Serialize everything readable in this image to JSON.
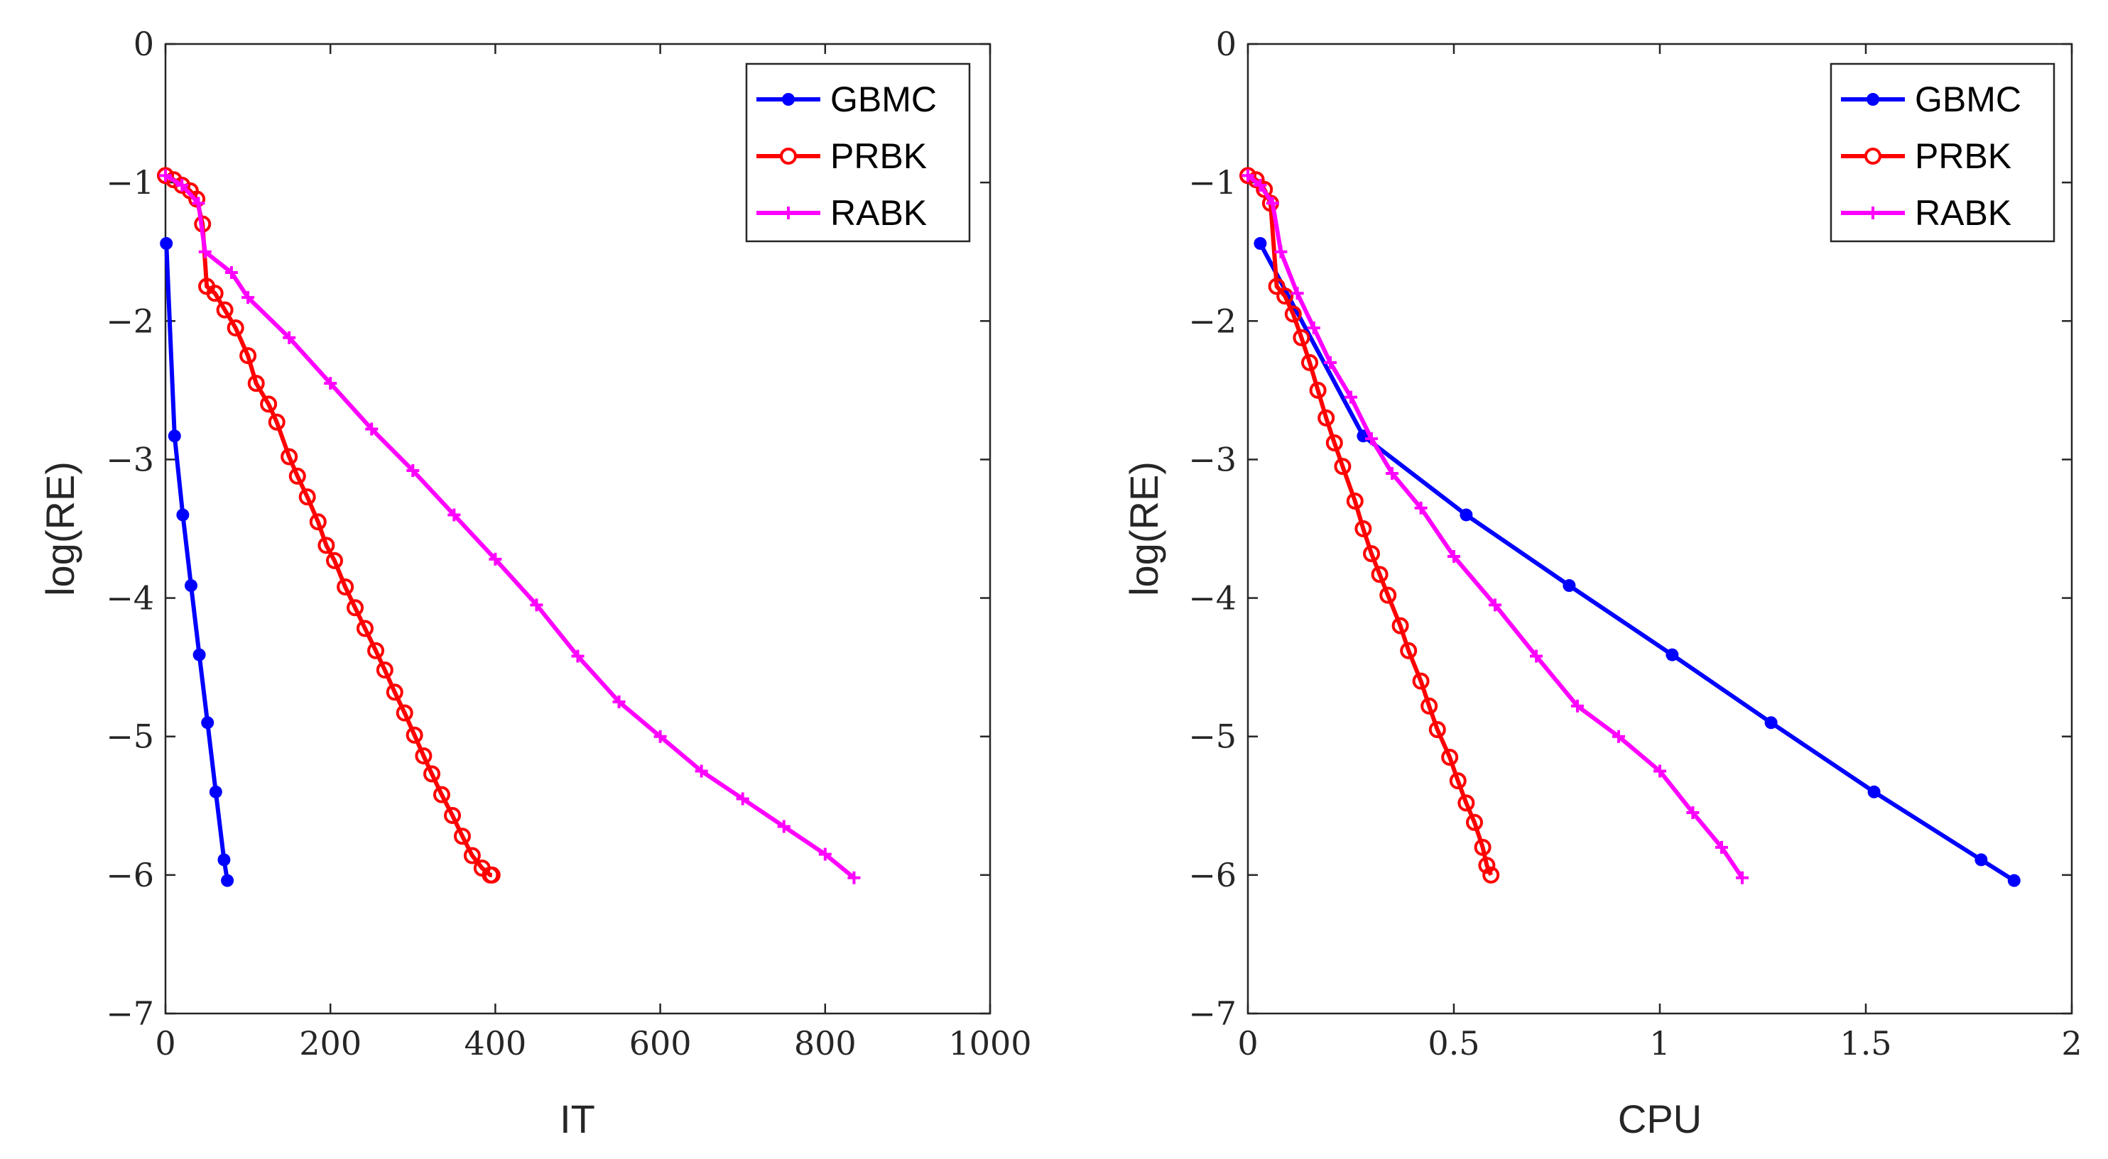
{
  "chart_data": [
    {
      "type": "line",
      "xlabel": "IT",
      "ylabel": "log(RE)",
      "xlim": [
        0,
        1000
      ],
      "ylim": [
        -7,
        0
      ],
      "xticks": [
        0,
        200,
        400,
        600,
        800,
        1000
      ],
      "xtick_labels": [
        "0",
        "200",
        "400",
        "600",
        "800",
        "1000"
      ],
      "yticks": [
        0,
        -1,
        -2,
        -3,
        -4,
        -5,
        -6,
        -7
      ],
      "ytick_labels": [
        "0",
        "−1",
        "−2",
        "−3",
        "−4",
        "−5",
        "−6",
        "−7"
      ],
      "legend_position": "top-right",
      "series": [
        {
          "name": "GBMC",
          "color": "#0000ff",
          "marker": "filled-dot",
          "points": [
            [
              1,
              -1.44
            ],
            [
              11,
              -2.83
            ],
            [
              21,
              -3.4
            ],
            [
              31,
              -3.91
            ],
            [
              41,
              -4.41
            ],
            [
              51,
              -4.9
            ],
            [
              61,
              -5.4
            ],
            [
              71,
              -5.89
            ],
            [
              75,
              -6.04
            ]
          ]
        },
        {
          "name": "PRBK",
          "color": "#ff0000",
          "marker": "open-circle",
          "points": [
            [
              0,
              -0.95
            ],
            [
              10,
              -0.98
            ],
            [
              20,
              -1.02
            ],
            [
              30,
              -1.06
            ],
            [
              38,
              -1.12
            ],
            [
              45,
              -1.3
            ],
            [
              50,
              -1.75
            ],
            [
              60,
              -1.8
            ],
            [
              72,
              -1.92
            ],
            [
              85,
              -2.05
            ],
            [
              100,
              -2.25
            ],
            [
              110,
              -2.45
            ],
            [
              125,
              -2.6
            ],
            [
              135,
              -2.73
            ],
            [
              150,
              -2.98
            ],
            [
              160,
              -3.12
            ],
            [
              172,
              -3.27
            ],
            [
              185,
              -3.45
            ],
            [
              195,
              -3.62
            ],
            [
              205,
              -3.73
            ],
            [
              218,
              -3.92
            ],
            [
              230,
              -4.07
            ],
            [
              242,
              -4.22
            ],
            [
              255,
              -4.38
            ],
            [
              266,
              -4.52
            ],
            [
              278,
              -4.68
            ],
            [
              290,
              -4.83
            ],
            [
              302,
              -4.99
            ],
            [
              313,
              -5.14
            ],
            [
              323,
              -5.27
            ],
            [
              335,
              -5.42
            ],
            [
              348,
              -5.57
            ],
            [
              360,
              -5.72
            ],
            [
              372,
              -5.86
            ],
            [
              384,
              -5.95
            ],
            [
              394,
              -6.0
            ],
            [
              396,
              -6.0
            ]
          ]
        },
        {
          "name": "RABK",
          "color": "#ff00ff",
          "marker": "plus",
          "points": [
            [
              0,
              -0.95
            ],
            [
              20,
              -1.02
            ],
            [
              40,
              -1.15
            ],
            [
              48,
              -1.5
            ],
            [
              80,
              -1.65
            ],
            [
              100,
              -1.83
            ],
            [
              150,
              -2.12
            ],
            [
              200,
              -2.45
            ],
            [
              250,
              -2.78
            ],
            [
              300,
              -3.08
            ],
            [
              350,
              -3.4
            ],
            [
              400,
              -3.72
            ],
            [
              450,
              -4.05
            ],
            [
              500,
              -4.42
            ],
            [
              550,
              -4.75
            ],
            [
              600,
              -5.0
            ],
            [
              650,
              -5.25
            ],
            [
              700,
              -5.45
            ],
            [
              750,
              -5.65
            ],
            [
              800,
              -5.85
            ],
            [
              835,
              -6.02
            ]
          ]
        }
      ]
    },
    {
      "type": "line",
      "xlabel": "CPU",
      "ylabel": "log(RE)",
      "xlim": [
        0,
        2
      ],
      "ylim": [
        -7,
        0
      ],
      "xticks": [
        0,
        0.5,
        1,
        1.5,
        2
      ],
      "xtick_labels": [
        "0",
        "0.5",
        "1",
        "1.5",
        "2"
      ],
      "yticks": [
        0,
        -1,
        -2,
        -3,
        -4,
        -5,
        -6,
        -7
      ],
      "ytick_labels": [
        "0",
        "−1",
        "−2",
        "−3",
        "−4",
        "−5",
        "−6",
        "−7"
      ],
      "legend_position": "top-right",
      "series": [
        {
          "name": "GBMC",
          "color": "#0000ff",
          "marker": "filled-dot",
          "points": [
            [
              0.03,
              -1.44
            ],
            [
              0.28,
              -2.83
            ],
            [
              0.53,
              -3.4
            ],
            [
              0.78,
              -3.91
            ],
            [
              1.03,
              -4.41
            ],
            [
              1.27,
              -4.9
            ],
            [
              1.52,
              -5.4
            ],
            [
              1.78,
              -5.89
            ],
            [
              1.86,
              -6.04
            ]
          ]
        },
        {
          "name": "PRBK",
          "color": "#ff0000",
          "marker": "open-circle",
          "points": [
            [
              0,
              -0.95
            ],
            [
              0.02,
              -0.98
            ],
            [
              0.04,
              -1.05
            ],
            [
              0.055,
              -1.15
            ],
            [
              0.07,
              -1.75
            ],
            [
              0.09,
              -1.82
            ],
            [
              0.11,
              -1.95
            ],
            [
              0.13,
              -2.12
            ],
            [
              0.15,
              -2.3
            ],
            [
              0.17,
              -2.5
            ],
            [
              0.19,
              -2.7
            ],
            [
              0.21,
              -2.88
            ],
            [
              0.23,
              -3.05
            ],
            [
              0.26,
              -3.3
            ],
            [
              0.28,
              -3.5
            ],
            [
              0.3,
              -3.68
            ],
            [
              0.32,
              -3.83
            ],
            [
              0.34,
              -3.98
            ],
            [
              0.37,
              -4.2
            ],
            [
              0.39,
              -4.38
            ],
            [
              0.42,
              -4.6
            ],
            [
              0.44,
              -4.78
            ],
            [
              0.46,
              -4.95
            ],
            [
              0.49,
              -5.15
            ],
            [
              0.51,
              -5.32
            ],
            [
              0.53,
              -5.48
            ],
            [
              0.55,
              -5.62
            ],
            [
              0.57,
              -5.8
            ],
            [
              0.58,
              -5.93
            ],
            [
              0.59,
              -6.0
            ]
          ]
        },
        {
          "name": "RABK",
          "color": "#ff00ff",
          "marker": "plus",
          "points": [
            [
              0,
              -0.95
            ],
            [
              0.03,
              -1.02
            ],
            [
              0.06,
              -1.15
            ],
            [
              0.08,
              -1.5
            ],
            [
              0.12,
              -1.8
            ],
            [
              0.16,
              -2.05
            ],
            [
              0.2,
              -2.3
            ],
            [
              0.25,
              -2.55
            ],
            [
              0.3,
              -2.85
            ],
            [
              0.35,
              -3.1
            ],
            [
              0.42,
              -3.35
            ],
            [
              0.5,
              -3.7
            ],
            [
              0.6,
              -4.05
            ],
            [
              0.7,
              -4.42
            ],
            [
              0.8,
              -4.78
            ],
            [
              0.9,
              -5.0
            ],
            [
              1.0,
              -5.25
            ],
            [
              1.08,
              -5.55
            ],
            [
              1.15,
              -5.8
            ],
            [
              1.2,
              -6.02
            ]
          ]
        }
      ]
    }
  ]
}
